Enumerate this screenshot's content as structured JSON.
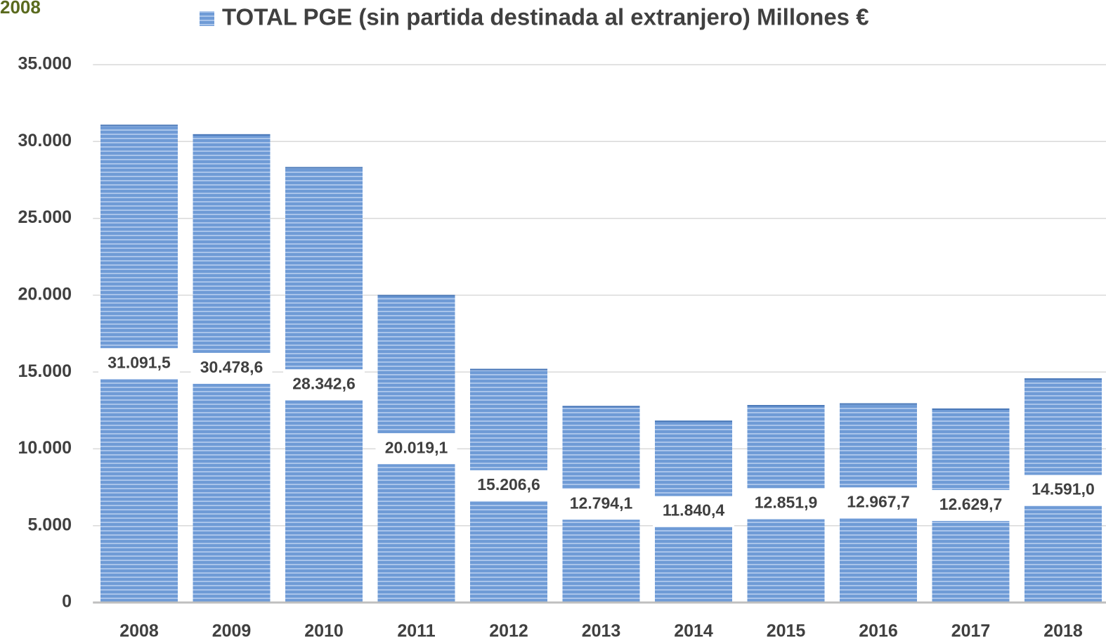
{
  "chart_data": {
    "type": "bar",
    "corner_label": "2008",
    "categories": [
      "2008",
      "2009",
      "2010",
      "2011",
      "2012",
      "2013",
      "2014",
      "2015",
      "2016",
      "2017",
      "2018"
    ],
    "series": [
      {
        "name": "TOTAL PGE (sin partida destinada al extranjero) Millones €",
        "color": "#6f9bd6",
        "values": [
          31091.5,
          30478.6,
          28342.6,
          20019.1,
          15206.6,
          12794.1,
          11840.4,
          12851.9,
          12967.7,
          12629.7,
          14591.0
        ],
        "value_labels": [
          "31.091,5",
          "30.478,6",
          "28.342,6",
          "20.019,1",
          "15.206,6",
          "12.794,1",
          "11.840,4",
          "12.851,9",
          "12.967,7",
          "12.629,7",
          "14.591,0"
        ]
      }
    ],
    "ylim": [
      0,
      35000
    ],
    "yticks": [
      0,
      {
        "value": 5000,
        "label": "5.000"
      },
      {
        "value": 10000,
        "label": "10.000"
      },
      {
        "value": 15000,
        "label": "15.000"
      },
      {
        "value": 20000,
        "label": "20.000"
      },
      {
        "value": 25000,
        "label": "25.000"
      },
      {
        "value": 30000,
        "label": "30.000"
      },
      {
        "value": 35000,
        "label": "35.000"
      }
    ],
    "grid": true
  }
}
